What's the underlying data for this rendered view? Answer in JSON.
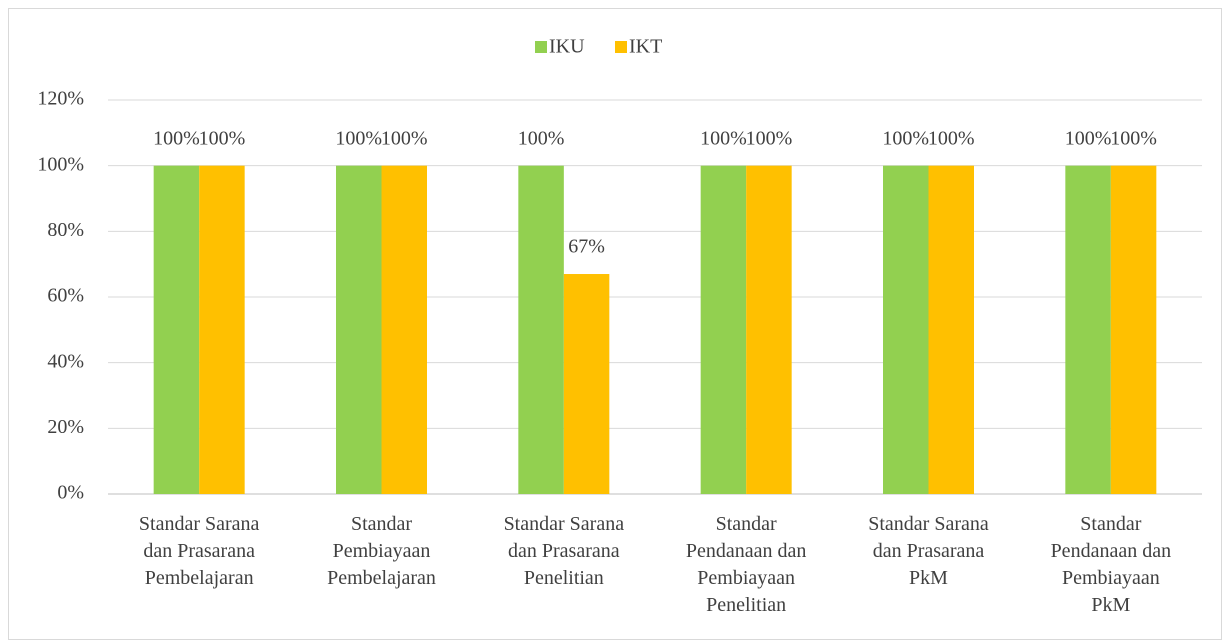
{
  "chart_data": {
    "type": "bar",
    "categories": [
      "Standar Sarana\ndan Prasarana\nPembelajaran",
      "Standar\nPembiayaan\nPembelajaran",
      "Standar Sarana\ndan Prasarana\nPenelitian",
      "Standar\nPendanaan dan\nPembiayaan\nPenelitian",
      "Standar Sarana\ndan Prasarana\nPkM",
      "Standar\nPendanaan dan\nPembiayaan\nPkM"
    ],
    "series": [
      {
        "name": "IKU",
        "color": "#92d050",
        "values": [
          100,
          100,
          100,
          100,
          100,
          100
        ],
        "value_labels": [
          "100%",
          "100%",
          "100%",
          "100%",
          "100%",
          "100%"
        ]
      },
      {
        "name": "IKT",
        "color": "#ffc000",
        "values": [
          100,
          100,
          67,
          100,
          100,
          100
        ],
        "value_labels": [
          "100%",
          "100%",
          "67%",
          "100%",
          "100%",
          "100%"
        ]
      }
    ],
    "ylim": [
      0,
      120
    ],
    "yticks": [
      {
        "value": 0,
        "label": "0%"
      },
      {
        "value": 20,
        "label": "20%"
      },
      {
        "value": 40,
        "label": "40%"
      },
      {
        "value": 60,
        "label": "60%"
      },
      {
        "value": 80,
        "label": "80%"
      },
      {
        "value": 100,
        "label": "100%"
      },
      {
        "value": 120,
        "label": "120%"
      }
    ],
    "grid": true,
    "legend": "top"
  }
}
